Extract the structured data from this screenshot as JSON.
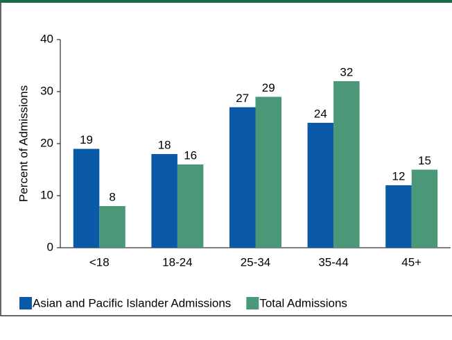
{
  "chart_data": {
    "type": "bar",
    "y_label": "Percent of Admissions",
    "categories": [
      "<18",
      "18-24",
      "25-34",
      "35-44",
      "45+"
    ],
    "series": [
      {
        "name": "Asian and Pacific Islander Admissions",
        "color": "#0b5aa8",
        "values": [
          19,
          18,
          27,
          24,
          12
        ]
      },
      {
        "name": "Total Admissions",
        "color": "#4a9878",
        "values": [
          8,
          16,
          29,
          32,
          15
        ]
      }
    ],
    "ylim": [
      0,
      40
    ],
    "yticks": [
      0,
      10,
      20,
      30,
      40
    ],
    "grid": false,
    "legend": "bottom"
  }
}
